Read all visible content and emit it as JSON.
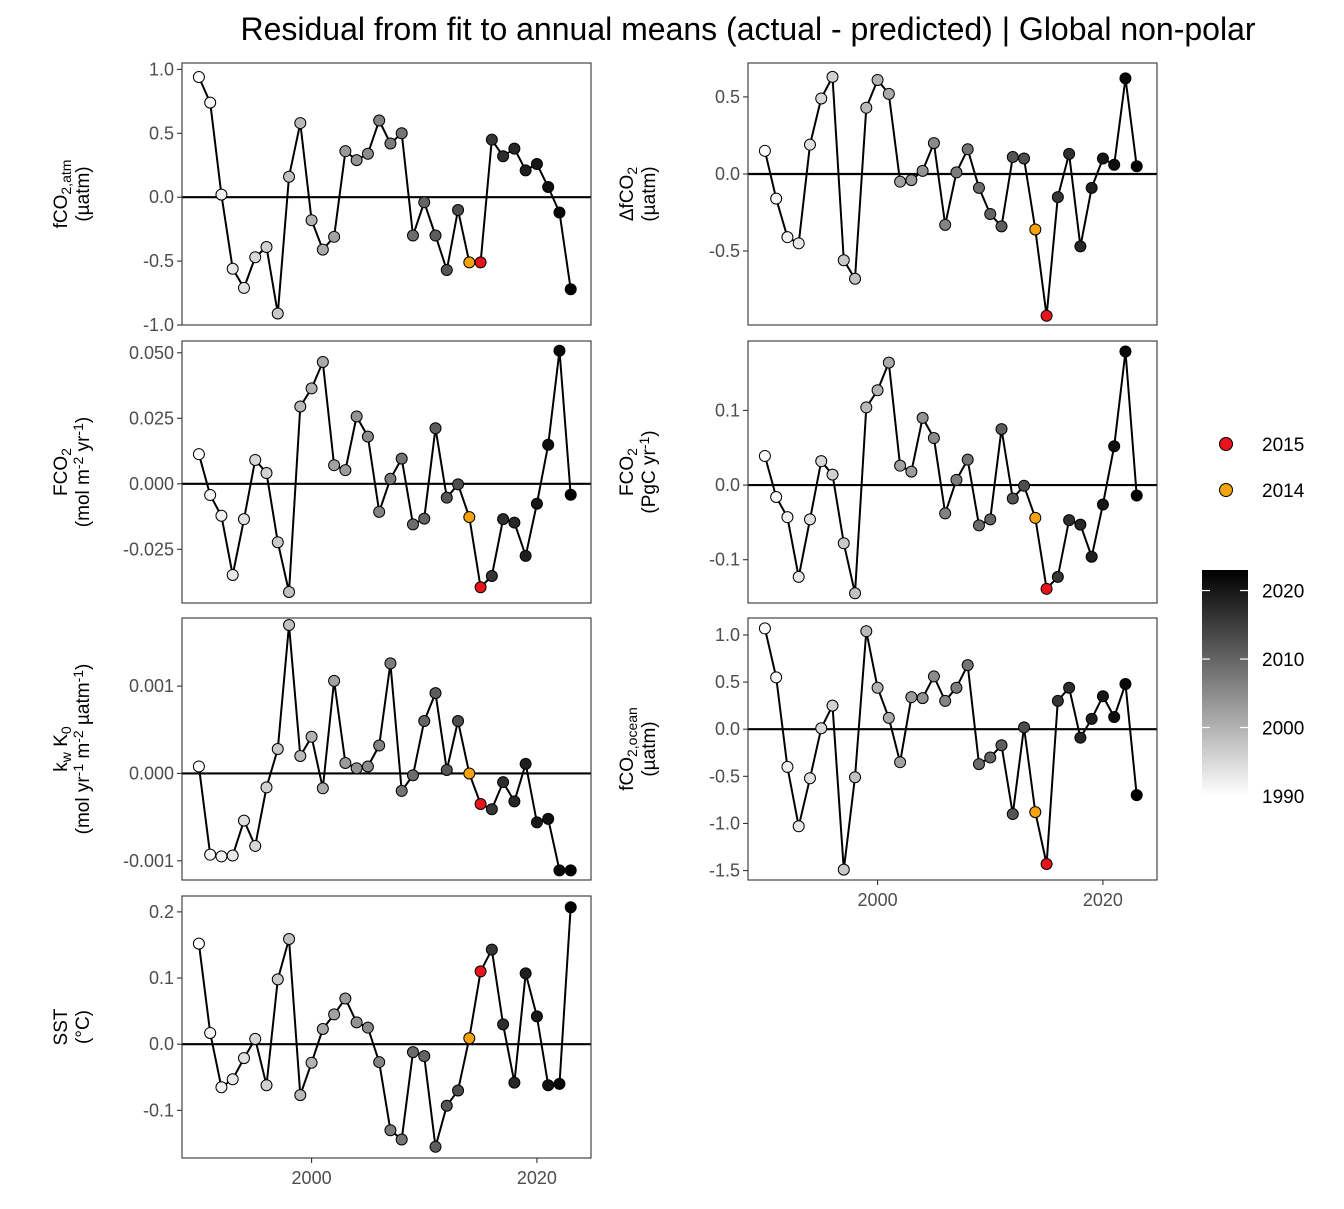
{
  "title": "Residual from fit to annual means (actual - predicted) | Global non-polar",
  "legend": {
    "points": [
      {
        "label": "2015",
        "color": "#e8141c"
      },
      {
        "label": "2014",
        "color": "#f5a30a"
      }
    ],
    "colorbar": {
      "ticks": [
        "2020",
        "2010",
        "2000",
        "1990"
      ],
      "min_year": 1990,
      "max_year": 2023,
      "low_color": "#ffffff",
      "high_color": "#000000"
    }
  },
  "highlight": {
    "2015": "#e8141c",
    "2014": "#f5a30a"
  },
  "chart_data": [
    {
      "id": "fco2atm",
      "type": "scatter",
      "ylabel_lines": [
        [
          {
            "t": "fCO"
          },
          {
            "t": "2,atm",
            "s": "sub"
          }
        ],
        [
          {
            "t": "(µatm)"
          }
        ]
      ],
      "xlim": [
        1988.5,
        2024.8
      ],
      "ylim": [
        -1.0,
        1.05
      ],
      "yticks": [
        {
          "v": 1.0,
          "l": "1.0"
        },
        {
          "v": 0.5,
          "l": "0.5"
        },
        {
          "v": 0.0,
          "l": "0.0"
        },
        {
          "v": -0.5,
          "l": "-0.5"
        },
        {
          "v": -1.0,
          "l": "-1.0"
        }
      ],
      "xticks": [],
      "x": [
        1990,
        1991,
        1992,
        1993,
        1994,
        1995,
        1996,
        1997,
        1998,
        1999,
        2000,
        2001,
        2002,
        2003,
        2004,
        2005,
        2006,
        2007,
        2008,
        2009,
        2010,
        2011,
        2012,
        2013,
        2014,
        2015,
        2016,
        2017,
        2018,
        2019,
        2020,
        2021,
        2022,
        2023
      ],
      "y": [
        0.94,
        0.74,
        0.02,
        -0.56,
        -0.71,
        -0.47,
        -0.39,
        -0.91,
        0.16,
        0.58,
        -0.18,
        -0.41,
        -0.31,
        0.36,
        0.29,
        0.34,
        0.6,
        0.42,
        0.5,
        -0.3,
        -0.04,
        -0.3,
        -0.57,
        -0.1,
        -0.51,
        -0.51,
        0.45,
        0.32,
        0.38,
        0.21,
        0.26,
        0.08,
        -0.12,
        -0.72
      ]
    },
    {
      "id": "dfco2",
      "type": "scatter",
      "ylabel_lines": [
        [
          {
            "t": "ΔfCO"
          },
          {
            "t": "2",
            "s": "sub"
          }
        ],
        [
          {
            "t": "(µatm)"
          }
        ]
      ],
      "xlim": [
        1988.5,
        2024.8
      ],
      "ylim": [
        -0.98,
        0.72
      ],
      "yticks": [
        {
          "v": 0.5,
          "l": "0.5"
        },
        {
          "v": 0.0,
          "l": "0.0"
        },
        {
          "v": -0.5,
          "l": "-0.5"
        }
      ],
      "xticks": [],
      "x": [
        1990,
        1991,
        1992,
        1993,
        1994,
        1995,
        1996,
        1997,
        1998,
        1999,
        2000,
        2001,
        2002,
        2003,
        2004,
        2005,
        2006,
        2007,
        2008,
        2009,
        2010,
        2011,
        2012,
        2013,
        2014,
        2015,
        2016,
        2017,
        2018,
        2019,
        2020,
        2021,
        2022,
        2023
      ],
      "y": [
        0.15,
        -0.16,
        -0.41,
        -0.45,
        0.19,
        0.49,
        0.63,
        -0.56,
        -0.68,
        0.43,
        0.61,
        0.52,
        -0.05,
        -0.04,
        0.02,
        0.2,
        -0.33,
        0.01,
        0.16,
        -0.09,
        -0.26,
        -0.34,
        0.11,
        0.1,
        -0.36,
        -0.92,
        -0.15,
        0.13,
        -0.47,
        -0.09,
        0.1,
        0.06,
        0.62,
        0.05
      ]
    },
    {
      "id": "fco2flux",
      "type": "scatter",
      "ylabel_lines": [
        [
          {
            "t": "FCO"
          },
          {
            "t": "2",
            "s": "sub"
          }
        ],
        [
          {
            "t": "(mol m"
          },
          {
            "t": "-2",
            "s": "sup"
          },
          {
            "t": " yr"
          },
          {
            "t": "-1",
            "s": "sup"
          },
          {
            "t": ")"
          }
        ]
      ],
      "xlim": [
        1988.5,
        2024.8
      ],
      "ylim": [
        -0.0455,
        0.0545
      ],
      "yticks": [
        {
          "v": 0.05,
          "l": "0.050"
        },
        {
          "v": 0.025,
          "l": "0.025"
        },
        {
          "v": 0.0,
          "l": "0.000"
        },
        {
          "v": -0.025,
          "l": "-0.025"
        }
      ],
      "xticks": [],
      "x": [
        1990,
        1991,
        1992,
        1993,
        1994,
        1995,
        1996,
        1997,
        1998,
        1999,
        2000,
        2001,
        2002,
        2003,
        2004,
        2005,
        2006,
        2007,
        2008,
        2009,
        2010,
        2011,
        2012,
        2013,
        2014,
        2015,
        2016,
        2017,
        2018,
        2019,
        2020,
        2021,
        2022,
        2023
      ],
      "y": [
        0.0113,
        -0.0043,
        -0.0122,
        -0.0348,
        -0.0135,
        0.0091,
        0.0041,
        -0.0223,
        -0.0413,
        0.0295,
        0.0364,
        0.0465,
        0.0071,
        0.0052,
        0.0257,
        0.018,
        -0.0107,
        0.0019,
        0.0096,
        -0.0155,
        -0.0133,
        0.0212,
        -0.0053,
        -0.0002,
        -0.0127,
        -0.0395,
        -0.0352,
        -0.0135,
        -0.0148,
        -0.0275,
        -0.0076,
        0.0149,
        0.0508,
        -0.0042
      ]
    },
    {
      "id": "fco2pg",
      "type": "scatter",
      "ylabel_lines": [
        [
          {
            "t": "FCO"
          },
          {
            "t": "2",
            "s": "sub"
          }
        ],
        [
          {
            "t": "(PgC yr"
          },
          {
            "t": "-1",
            "s": "sup"
          },
          {
            "t": ")"
          }
        ]
      ],
      "xlim": [
        1988.5,
        2024.8
      ],
      "ylim": [
        -0.158,
        0.193
      ],
      "yticks": [
        {
          "v": 0.1,
          "l": "0.1"
        },
        {
          "v": 0.0,
          "l": "0.0"
        },
        {
          "v": -0.1,
          "l": "-0.1"
        }
      ],
      "xticks": [],
      "x": [
        1990,
        1991,
        1992,
        1993,
        1994,
        1995,
        1996,
        1997,
        1998,
        1999,
        2000,
        2001,
        2002,
        2003,
        2004,
        2005,
        2006,
        2007,
        2008,
        2009,
        2010,
        2011,
        2012,
        2013,
        2014,
        2015,
        2016,
        2017,
        2018,
        2019,
        2020,
        2021,
        2022,
        2023
      ],
      "y": [
        0.039,
        -0.016,
        -0.043,
        -0.123,
        -0.046,
        0.032,
        0.014,
        -0.078,
        -0.145,
        0.104,
        0.127,
        0.164,
        0.026,
        0.018,
        0.09,
        0.063,
        -0.038,
        0.007,
        0.034,
        -0.054,
        -0.046,
        0.075,
        -0.018,
        -0.001,
        -0.044,
        -0.139,
        -0.123,
        -0.047,
        -0.053,
        -0.096,
        -0.026,
        0.052,
        0.179,
        -0.014
      ]
    },
    {
      "id": "kwk0",
      "type": "scatter",
      "ylabel_lines": [
        [
          {
            "t": "k"
          },
          {
            "t": "w",
            "s": "sub"
          },
          {
            "t": " K"
          },
          {
            "t": "0",
            "s": "sub"
          }
        ],
        [
          {
            "t": "(mol yr"
          },
          {
            "t": "-1",
            "s": "sup"
          },
          {
            "t": " m"
          },
          {
            "t": "-2",
            "s": "sup"
          },
          {
            "t": " µatm"
          },
          {
            "t": "-1",
            "s": "sup"
          },
          {
            "t": ")"
          }
        ]
      ],
      "xlim": [
        1988.5,
        2024.8
      ],
      "ylim": [
        -0.00122,
        0.00178
      ],
      "yticks": [
        {
          "v": 0.001,
          "l": "0.001"
        },
        {
          "v": 0.0,
          "l": "0.000"
        },
        {
          "v": -0.001,
          "l": "-0.001"
        }
      ],
      "xticks": [],
      "x": [
        1990,
        1991,
        1992,
        1993,
        1994,
        1995,
        1996,
        1997,
        1998,
        1999,
        2000,
        2001,
        2002,
        2003,
        2004,
        2005,
        2006,
        2007,
        2008,
        2009,
        2010,
        2011,
        2012,
        2013,
        2014,
        2015,
        2016,
        2017,
        2018,
        2019,
        2020,
        2021,
        2022,
        2023
      ],
      "y": [
        8e-05,
        -0.00093,
        -0.00095,
        -0.00094,
        -0.00054,
        -0.00083,
        -0.00016,
        0.00028,
        0.0017,
        0.0002,
        0.00042,
        -0.00017,
        0.00106,
        0.00012,
        6e-05,
        8e-05,
        0.00032,
        0.00126,
        -0.0002,
        -2e-05,
        0.0006,
        0.00092,
        4e-05,
        0.0006,
        0.0,
        -0.00035,
        -0.00041,
        -0.0001,
        -0.00032,
        0.00011,
        -0.00056,
        -0.00052,
        -0.00111,
        -0.00111
      ]
    },
    {
      "id": "fco2ocean",
      "type": "scatter",
      "ylabel_lines": [
        [
          {
            "t": "fCO"
          },
          {
            "t": "2,ocean",
            "s": "sub"
          }
        ],
        [
          {
            "t": "(µatm)"
          }
        ]
      ],
      "xlim": [
        1988.5,
        2024.8
      ],
      "ylim": [
        -1.6,
        1.18
      ],
      "yticks": [
        {
          "v": 1.0,
          "l": "1.0"
        },
        {
          "v": 0.5,
          "l": "0.5"
        },
        {
          "v": 0.0,
          "l": "0.0"
        },
        {
          "v": -0.5,
          "l": "-0.5"
        },
        {
          "v": -1.0,
          "l": "-1.0"
        },
        {
          "v": -1.5,
          "l": "-1.5"
        }
      ],
      "xticks": [
        {
          "v": 2000,
          "l": "2000"
        },
        {
          "v": 2020,
          "l": "2020"
        }
      ],
      "x": [
        1990,
        1991,
        1992,
        1993,
        1994,
        1995,
        1996,
        1997,
        1998,
        1999,
        2000,
        2001,
        2002,
        2003,
        2004,
        2005,
        2006,
        2007,
        2008,
        2009,
        2010,
        2011,
        2012,
        2013,
        2014,
        2015,
        2016,
        2017,
        2018,
        2019,
        2020,
        2021,
        2022,
        2023
      ],
      "y": [
        1.07,
        0.55,
        -0.4,
        -1.03,
        -0.52,
        0.01,
        0.25,
        -1.49,
        -0.51,
        1.04,
        0.44,
        0.12,
        -0.35,
        0.34,
        0.33,
        0.56,
        0.3,
        0.44,
        0.68,
        -0.37,
        -0.3,
        -0.17,
        -0.9,
        0.02,
        -0.88,
        -1.43,
        0.3,
        0.44,
        -0.09,
        0.11,
        0.35,
        0.13,
        0.48,
        -0.7
      ]
    },
    {
      "id": "sst",
      "type": "scatter",
      "ylabel_lines": [
        [
          {
            "t": "SST"
          }
        ],
        [
          {
            "t": "(°C)"
          }
        ]
      ],
      "xlim": [
        1988.5,
        2024.8
      ],
      "ylim": [
        -0.172,
        0.224
      ],
      "yticks": [
        {
          "v": 0.2,
          "l": "0.2"
        },
        {
          "v": 0.1,
          "l": "0.1"
        },
        {
          "v": 0.0,
          "l": "0.0"
        },
        {
          "v": -0.1,
          "l": "-0.1"
        }
      ],
      "xticks": [
        {
          "v": 2000,
          "l": "2000"
        },
        {
          "v": 2020,
          "l": "2020"
        }
      ],
      "x": [
        1990,
        1991,
        1992,
        1993,
        1994,
        1995,
        1996,
        1997,
        1998,
        1999,
        2000,
        2001,
        2002,
        2003,
        2004,
        2005,
        2006,
        2007,
        2008,
        2009,
        2010,
        2011,
        2012,
        2013,
        2014,
        2015,
        2016,
        2017,
        2018,
        2019,
        2020,
        2021,
        2022,
        2023
      ],
      "y": [
        0.152,
        0.017,
        -0.065,
        -0.053,
        -0.021,
        0.008,
        -0.062,
        0.098,
        0.159,
        -0.077,
        -0.028,
        0.023,
        0.045,
        0.069,
        0.033,
        0.025,
        -0.027,
        -0.13,
        -0.144,
        -0.012,
        -0.018,
        -0.155,
        -0.093,
        -0.07,
        0.009,
        0.11,
        0.143,
        0.03,
        -0.058,
        0.107,
        0.042,
        -0.062,
        -0.06,
        0.207
      ]
    }
  ]
}
